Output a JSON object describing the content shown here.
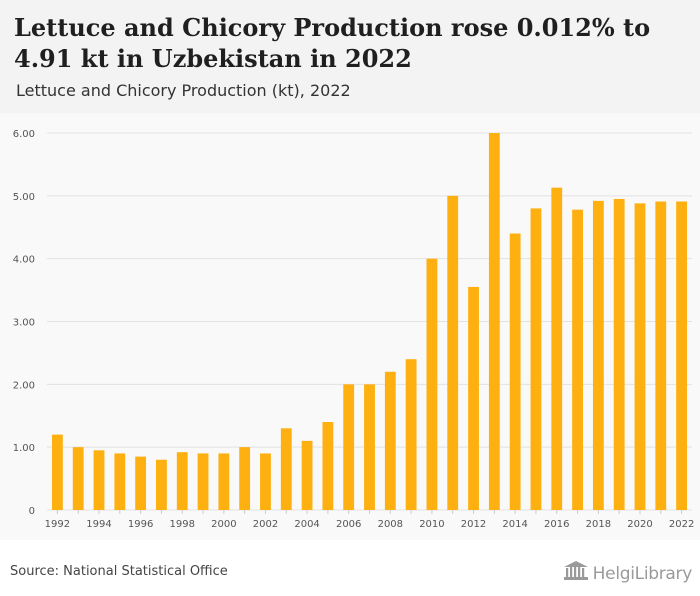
{
  "header": {
    "title": "Lettuce and Chicory Production rose 0.012% to 4.91 kt in Uzbekistan in 2022",
    "subtitle": "Lettuce and Chicory Production (kt), 2022"
  },
  "footer": {
    "source": "Source: National Statistical Office",
    "brand": "HelgiLibrary",
    "brand_icon": "library-building-icon"
  },
  "colors": {
    "bar": "#FDB00F",
    "grid": "#e2e2e2",
    "tick_text": "#555555"
  },
  "chart_data": {
    "type": "bar",
    "title": "Lettuce and Chicory Production (kt), 2022",
    "xlabel": "",
    "ylabel": "",
    "ylim": [
      0,
      6
    ],
    "y_ticks": [
      "0",
      "1.00",
      "2.00",
      "3.00",
      "4.00",
      "5.00",
      "6.00"
    ],
    "grid": true,
    "legend": "none",
    "categories": [
      "1992",
      "1993",
      "1994",
      "1995",
      "1996",
      "1997",
      "1998",
      "1999",
      "2000",
      "2001",
      "2002",
      "2003",
      "2004",
      "2005",
      "2006",
      "2007",
      "2008",
      "2009",
      "2010",
      "2011",
      "2012",
      "2013",
      "2014",
      "2015",
      "2016",
      "2017",
      "2018",
      "2019",
      "2020",
      "2021",
      "2022"
    ],
    "x_tick_labels": [
      "1992",
      "1994",
      "1996",
      "1998",
      "2000",
      "2002",
      "2004",
      "2006",
      "2008",
      "2010",
      "2012",
      "2014",
      "2016",
      "2018",
      "2020",
      "2022"
    ],
    "series": [
      {
        "values": [
          1.2,
          1.0,
          0.95,
          0.9,
          0.85,
          0.8,
          0.92,
          0.9,
          0.9,
          1.0,
          0.9,
          1.3,
          1.1,
          1.4,
          2.0,
          2.0,
          2.2,
          2.4,
          4.0,
          5.0,
          3.55,
          6.0,
          4.4,
          4.8,
          5.13,
          4.78,
          4.92,
          4.95,
          4.88,
          4.91,
          4.91
        ]
      }
    ]
  }
}
